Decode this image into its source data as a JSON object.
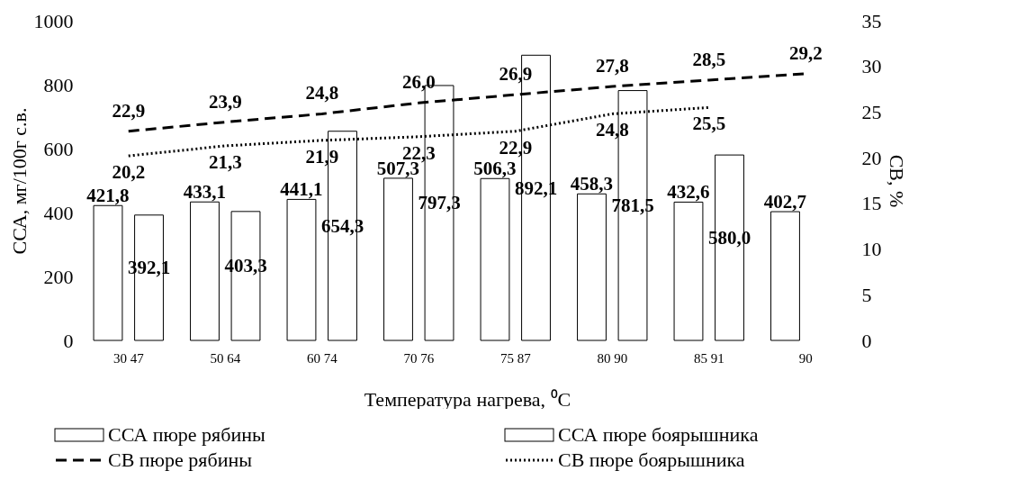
{
  "chart_data": {
    "type": "bar",
    "xlabel": "Температура нагрева, ⁰С",
    "ylabel": "ССА, мг/100г с.в.",
    "y2label": "СВ, %",
    "categories": [
      "30 47",
      "50 64",
      "60 74",
      "70 76",
      "75 87",
      "80 90",
      "85 91",
      "90"
    ],
    "ylim": [
      0,
      1000
    ],
    "yticks": [
      0,
      200,
      400,
      600,
      800,
      1000
    ],
    "y2lim": [
      0,
      35
    ],
    "y2ticks": [
      0,
      5,
      10,
      15,
      20,
      25,
      30,
      35
    ],
    "legend": "bottom",
    "grid": false,
    "series": [
      {
        "name": "ССА пюре рябины",
        "color": "#ffffff",
        "values": [
          421.8,
          433.1,
          441.1,
          507.3,
          506.3,
          458.3,
          432.6,
          402.7
        ],
        "value_labels": [
          "421,8",
          "433,1",
          "441,1",
          "507,3",
          "506,3",
          "458,3",
          "432,6",
          "402,7"
        ]
      },
      {
        "name": "ССА пюре боярышника",
        "color": "#ffffff",
        "values": [
          392.1,
          403.3,
          654.3,
          797.3,
          892.1,
          781.5,
          580.0,
          null
        ],
        "value_labels": [
          "392,1",
          "403,3",
          "654,3",
          "797,3",
          "892,1",
          "781,5",
          "580,0",
          null
        ]
      },
      {
        "name": "СВ пюре рябины",
        "type": "line",
        "axis": "y2",
        "line_style": "dashed",
        "marker": "none",
        "color": "#000000",
        "values": [
          22.9,
          23.9,
          24.8,
          26.0,
          26.9,
          27.8,
          28.5,
          29.2
        ],
        "value_labels": [
          "22,9",
          "23,9",
          "24,8",
          "26,0",
          "26,9",
          "27,8",
          "28,5",
          "29,2"
        ]
      },
      {
        "name": "СВ пюре боярышника",
        "type": "line",
        "axis": "y2",
        "line_style": "dotted",
        "marker": "none",
        "color": "#000000",
        "values": [
          20.2,
          21.3,
          21.9,
          22.3,
          22.9,
          24.8,
          25.5,
          null
        ],
        "value_labels": [
          "20,2",
          "21,3",
          "21,9",
          "22,3",
          "22,9",
          "24,8",
          "25,5",
          null
        ]
      }
    ]
  }
}
